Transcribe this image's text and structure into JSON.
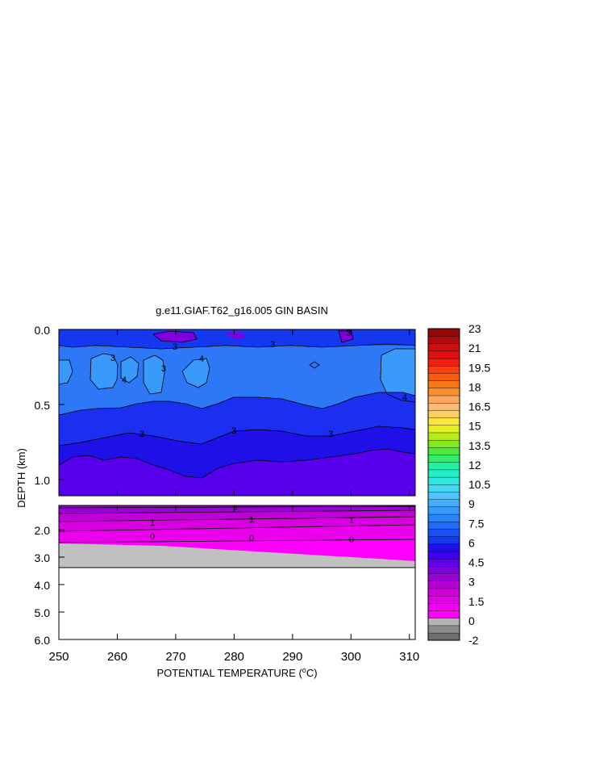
{
  "chart_data": {
    "type": "heatmap",
    "title": "g.e11.GIAF.T62_g16.005 GIN BASIN",
    "xlabel": "POTENTIAL TEMPERATURE (",
    "xlabel_unit": "o",
    "xlabel_unit_suffix": "C)",
    "ylabel": "DEPTH (km)",
    "x_ticks": [
      "250",
      "260",
      "270",
      "280",
      "290",
      "300",
      "310"
    ],
    "x_range": [
      250,
      311
    ],
    "upper_panel": {
      "depth_range_km": [
        0,
        1.12
      ],
      "y_ticks": [
        "0.0",
        "0.5",
        "1.0"
      ],
      "contour_labels": [
        "3",
        "3",
        "3",
        "4",
        "4",
        "4",
        "3",
        "3",
        "3",
        "3",
        "3"
      ]
    },
    "lower_panel": {
      "depth_range_km": [
        1.2,
        6.0
      ],
      "y_ticks": [
        "2.0",
        "3.0",
        "4.0",
        "5.0",
        "6.0"
      ],
      "contour_labels": [
        "2",
        "1",
        "1",
        "1",
        "0",
        "0",
        "0"
      ],
      "bottom_depth_km": 3.35
    },
    "colorbar": {
      "labels": [
        "23",
        "21",
        "19.5",
        "18",
        "16.5",
        "15",
        "13.5",
        "12",
        "10.5",
        "9",
        "7.5",
        "6",
        "4.5",
        "3",
        "1.5",
        "0",
        "-2"
      ],
      "colors": [
        "#6e6e6e",
        "#8c8c8c",
        "#b4b4b4",
        "#ff00ff",
        "#f000f0",
        "#e000e6",
        "#d000d8",
        "#b800d4",
        "#9c00d8",
        "#7f00dc",
        "#6000ec",
        "#3c00f4",
        "#2010e8",
        "#1438f0",
        "#1a50f5",
        "#1f6cf8",
        "#2884fa",
        "#3a9afc",
        "#46aefc",
        "#50c4fc",
        "#46d8f2",
        "#30e6e0",
        "#1ef0c8",
        "#20f0a0",
        "#30ec70",
        "#50e840",
        "#84e820",
        "#b8ec18",
        "#e4f020",
        "#fce640",
        "#fcd060",
        "#fcbc78",
        "#fca860",
        "#fc9030",
        "#f87818",
        "#f85c10",
        "#f84010",
        "#f02010",
        "#e01010",
        "#cc1010",
        "#b00c0c",
        "#900808"
      ]
    }
  }
}
